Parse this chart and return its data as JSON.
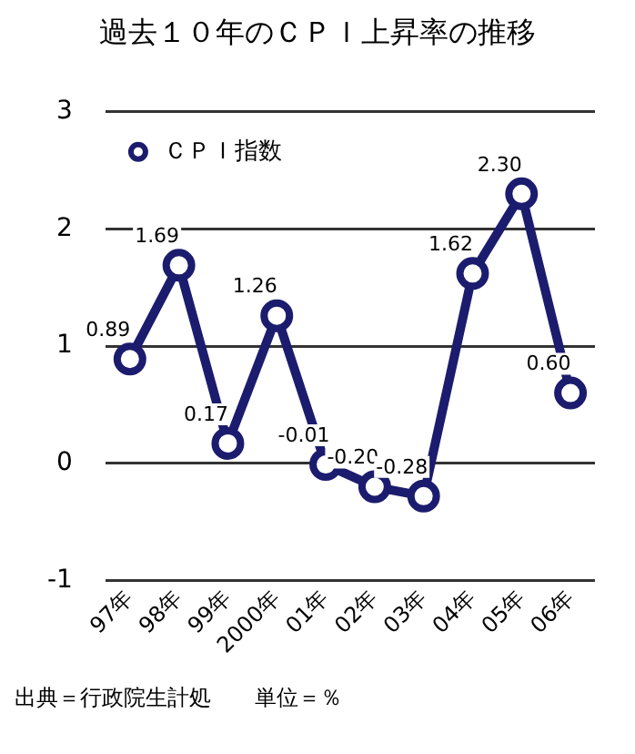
{
  "chart_data": {
    "type": "line",
    "title": "過去１０年のＣＰＩ上昇率の推移",
    "categories": [
      "97年",
      "98年",
      "99年",
      "2000年",
      "01年",
      "02年",
      "03年",
      "04年",
      "05年",
      "06年"
    ],
    "series": [
      {
        "name": "ＣＰＩ指数",
        "color": "#1c1c6e",
        "values": [
          0.89,
          1.69,
          0.17,
          1.26,
          -0.01,
          -0.2,
          -0.28,
          1.62,
          2.3,
          0.6
        ],
        "value_labels": [
          "0.89",
          "1.69",
          "0.17",
          "1.26",
          "-0.01",
          "-0.20",
          "-0.28",
          "1.62",
          "2.30",
          "0.60"
        ]
      }
    ],
    "ylim": [
      -1,
      3
    ],
    "yticks": [
      -1,
      0,
      1,
      2,
      3
    ],
    "grid": "y",
    "legend": "top left",
    "marker": "circle",
    "line_style": "solid",
    "annotations": [
      "出典＝行政院生計処",
      "単位＝％"
    ]
  }
}
